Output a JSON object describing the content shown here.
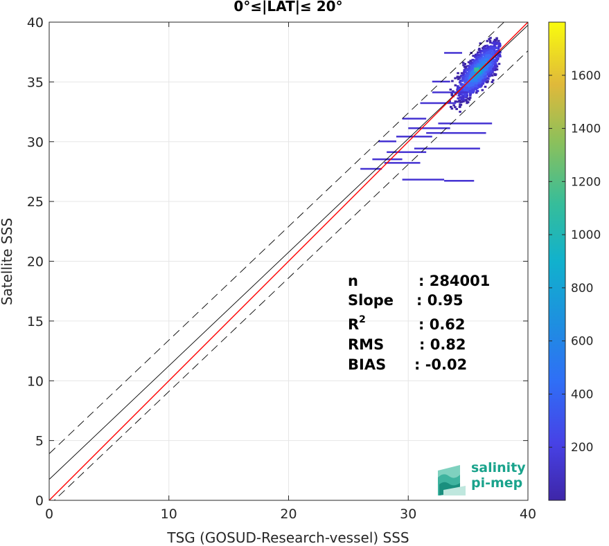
{
  "chart_data": {
    "type": "heatmap",
    "title": "0°≤|LAT|≤ 20°",
    "xlabel": "TSG (GOSUD-Research-vessel) SSS",
    "ylabel": "Satellite SSS",
    "xlim": [
      0,
      40
    ],
    "ylim": [
      0,
      40
    ],
    "xticks": [
      "0",
      "10",
      "20",
      "30",
      "40"
    ],
    "yticks": [
      "0",
      "5",
      "10",
      "15",
      "20",
      "25",
      "30",
      "35",
      "40"
    ],
    "grid": true,
    "colorbar": {
      "range": [
        0,
        1800
      ],
      "ticks": [
        "200",
        "400",
        "600",
        "800",
        "1000",
        "1200",
        "1400",
        "1600"
      ],
      "colormap": "parula"
    },
    "lines": [
      {
        "role": "fit",
        "color": "#000000",
        "style": "solid",
        "intercept": 1.75,
        "slope": 0.95
      },
      {
        "role": "fit-upper",
        "color": "#000000",
        "style": "dashed",
        "intercept": 3.9,
        "slope": 0.95
      },
      {
        "role": "fit-lower",
        "color": "#000000",
        "style": "dashed",
        "intercept": -0.4,
        "slope": 0.95
      },
      {
        "role": "identity",
        "color": "#ff0000",
        "style": "solid",
        "intercept": 0,
        "slope": 1
      }
    ],
    "density_peak": {
      "x": 35.8,
      "y": 36.0
    },
    "stats": [
      {
        "label": "n",
        "value": ": 284001"
      },
      {
        "label": "Slope",
        "value": ": 0.95"
      },
      {
        "label": "R",
        "sup": "2",
        "value": ": 0.62"
      },
      {
        "label": "RMS",
        "value": ": 0.82"
      },
      {
        "label": "BIAS",
        "value": ": -0.02"
      }
    ]
  },
  "logo": {
    "line1": "salinity",
    "line2": "pi-mep"
  }
}
